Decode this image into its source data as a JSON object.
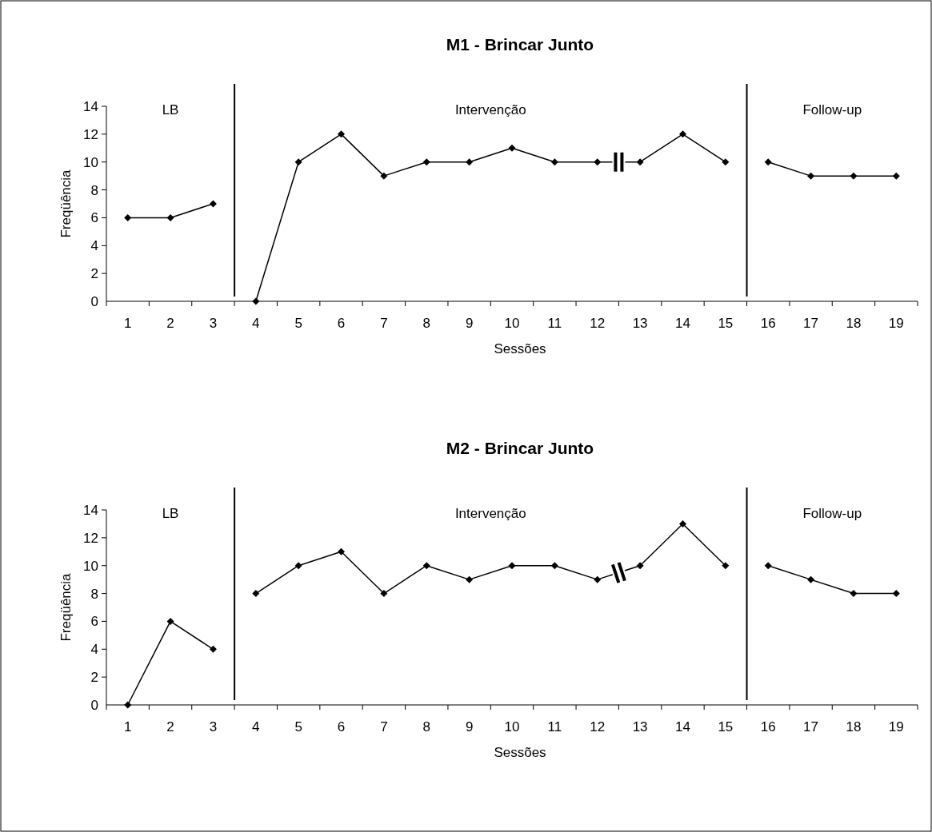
{
  "chart_data": [
    {
      "type": "line",
      "title": "M1 - Brincar Junto",
      "xlabel": "Sessões",
      "ylabel": "Freqüência",
      "xlim": [
        0.5,
        19.5
      ],
      "xticks": [
        1,
        2,
        3,
        4,
        5,
        6,
        7,
        8,
        9,
        10,
        11,
        12,
        13,
        14,
        15,
        16,
        17,
        18,
        19
      ],
      "ylim": [
        0,
        14
      ],
      "yticks": [
        0,
        2,
        4,
        6,
        8,
        10,
        12,
        14
      ],
      "grid": false,
      "marker": "diamond",
      "line_style": "solid",
      "series": [
        {
          "color": "#000000",
          "x": [
            1,
            2,
            3
          ],
          "values": [
            6,
            6,
            7
          ]
        },
        {
          "color": "#000000",
          "x": [
            4,
            5,
            6,
            7,
            8,
            9,
            10,
            11,
            12,
            13,
            14,
            15
          ],
          "values": [
            0,
            10,
            12,
            9,
            10,
            10,
            11,
            10,
            10,
            10,
            12,
            10
          ]
        },
        {
          "color": "#000000",
          "x": [
            16,
            17,
            18,
            19
          ],
          "values": [
            10,
            9,
            9,
            9
          ]
        }
      ],
      "ref_lines": [
        {
          "axis": "x",
          "value": 3.5,
          "color": "#000000"
        },
        {
          "axis": "x",
          "value": 15.5,
          "color": "#000000"
        }
      ],
      "annotations": [
        "LB",
        "Intervenção",
        "Follow-up"
      ]
    },
    {
      "type": "line",
      "title": "M2 - Brincar Junto",
      "xlabel": "Sessões",
      "ylabel": "Freqüência",
      "xlim": [
        0.5,
        19.5
      ],
      "xticks": [
        1,
        2,
        3,
        4,
        5,
        6,
        7,
        8,
        9,
        10,
        11,
        12,
        13,
        14,
        15,
        16,
        17,
        18,
        19
      ],
      "ylim": [
        0,
        14
      ],
      "yticks": [
        0,
        2,
        4,
        6,
        8,
        10,
        12,
        14
      ],
      "grid": false,
      "marker": "diamond",
      "line_style": "solid",
      "series": [
        {
          "color": "#000000",
          "x": [
            1,
            2,
            3
          ],
          "values": [
            0,
            6,
            4
          ]
        },
        {
          "color": "#000000",
          "x": [
            4,
            5,
            6,
            7,
            8,
            9,
            10,
            11,
            12,
            13,
            14,
            15
          ],
          "values": [
            8,
            10,
            11,
            8,
            10,
            9,
            10,
            10,
            9,
            10,
            13,
            10
          ]
        },
        {
          "color": "#000000",
          "x": [
            16,
            17,
            18,
            19
          ],
          "values": [
            10,
            9,
            8,
            8
          ]
        }
      ],
      "ref_lines": [
        {
          "axis": "x",
          "value": 3.5,
          "color": "#000000"
        },
        {
          "axis": "x",
          "value": 15.5,
          "color": "#000000"
        }
      ],
      "annotations": [
        "LB",
        "Intervenção",
        "Follow-up"
      ]
    }
  ]
}
